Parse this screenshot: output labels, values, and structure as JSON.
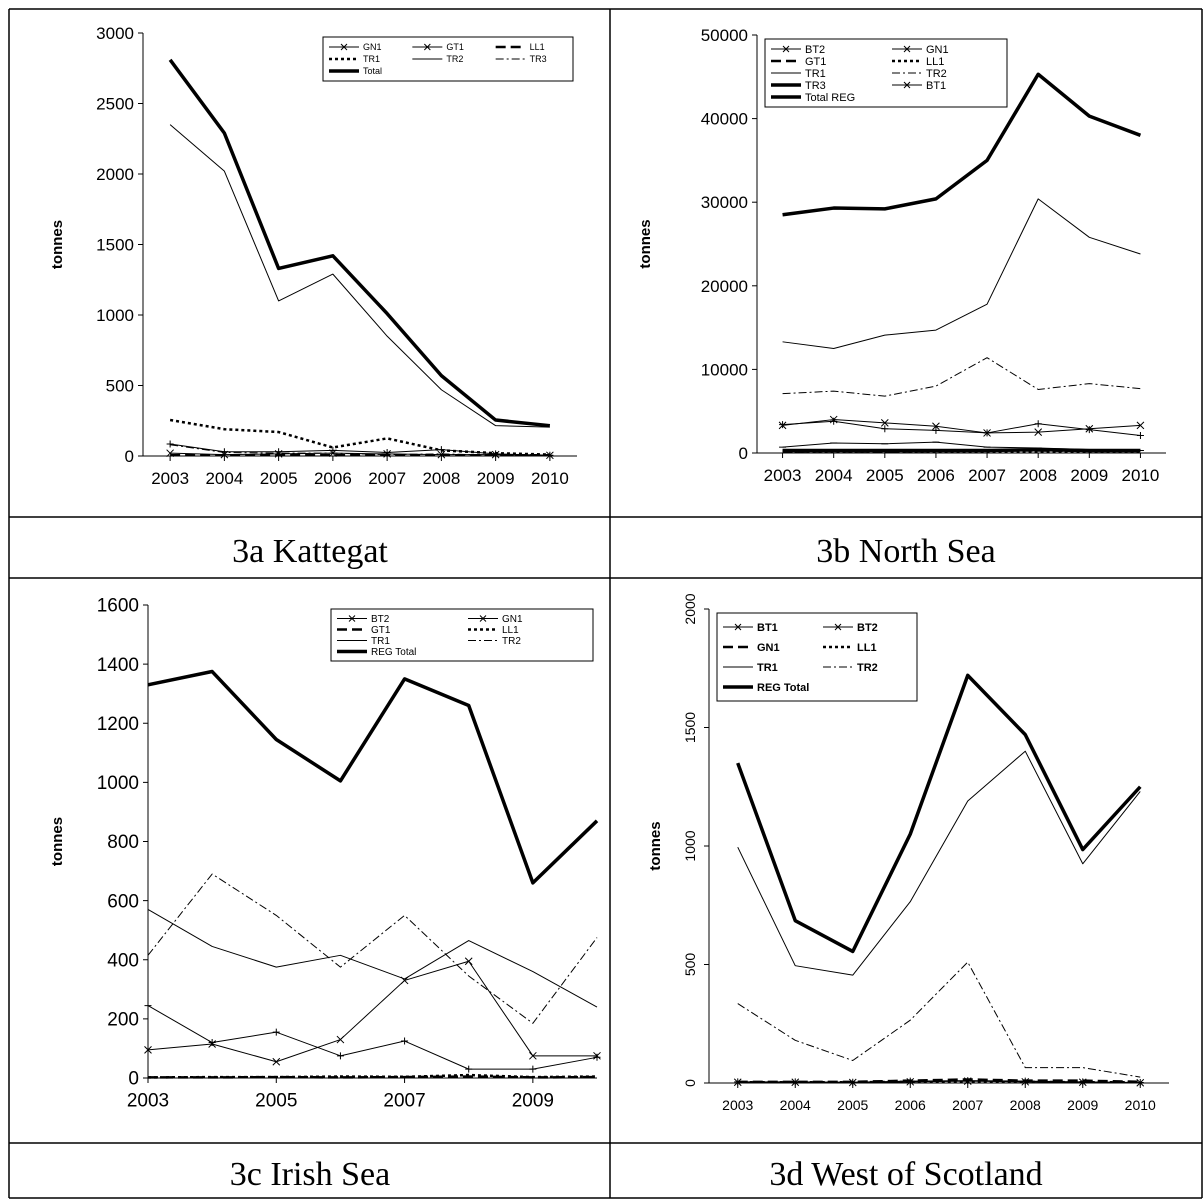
{
  "chart_data": [
    {
      "type": "line",
      "title": "3a Kattegat",
      "y_label": "tonnes",
      "x": [
        2003,
        2004,
        2005,
        2006,
        2007,
        2008,
        2009,
        2010
      ],
      "xlim": [
        2002.5,
        2010.5
      ],
      "xticks": [
        2003,
        2004,
        2005,
        2006,
        2007,
        2008,
        2009,
        2010
      ],
      "ylim": [
        0,
        3000
      ],
      "yticks": [
        0,
        500,
        1000,
        1500,
        2000,
        2500,
        3000
      ],
      "legend": "upper right",
      "series": [
        {
          "name": "GN1",
          "color": "#000000",
          "style": "solid",
          "marker": "plus",
          "values": [
            85,
            30,
            30,
            40,
            25,
            45,
            15,
            5
          ]
        },
        {
          "name": "GT1",
          "color": "#000000",
          "style": "solid",
          "marker": "cross",
          "values": [
            20,
            10,
            15,
            20,
            15,
            10,
            10,
            5
          ]
        },
        {
          "name": "LL1",
          "color": "#000000",
          "style": "dashed",
          "values": [
            5,
            5,
            5,
            5,
            5,
            5,
            5,
            5
          ]
        },
        {
          "name": "TR1",
          "color": "#000000",
          "style": "dotted",
          "values": [
            255,
            190,
            170,
            60,
            125,
            40,
            20,
            10
          ]
        },
        {
          "name": "TR2",
          "color": "#000000",
          "style": "solid",
          "values": [
            2350,
            2020,
            1100,
            1290,
            850,
            470,
            215,
            205
          ]
        },
        {
          "name": "TR3",
          "color": "#000000",
          "style": "dashdot",
          "values": [
            80,
            25,
            20,
            20,
            10,
            15,
            5,
            5
          ]
        },
        {
          "name": "Total",
          "color": "#000000",
          "style": "thick",
          "values": [
            2810,
            2290,
            1330,
            1420,
            1010,
            570,
            255,
            215
          ]
        }
      ]
    },
    {
      "type": "line",
      "title": "3b North Sea",
      "y_label": "tonnes",
      "x": [
        2003,
        2004,
        2005,
        2006,
        2007,
        2008,
        2009,
        2010
      ],
      "xlim": [
        2002.5,
        2010.5
      ],
      "xticks": [
        2003,
        2004,
        2005,
        2006,
        2007,
        2008,
        2009,
        2010
      ],
      "ylim": [
        0,
        50000
      ],
      "yticks": [
        0,
        10000,
        20000,
        30000,
        40000,
        50000
      ],
      "legend": "upper left",
      "series": [
        {
          "name": "BT2",
          "color": "#000000",
          "style": "solid",
          "marker": "plus",
          "values": [
            3400,
            3800,
            2900,
            2700,
            2400,
            3500,
            2800,
            2100
          ]
        },
        {
          "name": "GN1",
          "color": "#000000",
          "style": "solid",
          "marker": "cross",
          "values": [
            3300,
            4000,
            3600,
            3200,
            2400,
            2500,
            2900,
            3300
          ]
        },
        {
          "name": "GT1",
          "color": "#000000",
          "style": "dashed",
          "values": [
            200,
            250,
            200,
            250,
            300,
            300,
            250,
            250
          ]
        },
        {
          "name": "LL1",
          "color": "#000000",
          "style": "dotted",
          "values": [
            100,
            100,
            100,
            100,
            100,
            100,
            100,
            100
          ]
        },
        {
          "name": "TR1",
          "color": "#000000",
          "style": "solid",
          "values": [
            13300,
            12500,
            14100,
            14700,
            17800,
            30400,
            25800,
            23800
          ]
        },
        {
          "name": "TR2",
          "color": "#000000",
          "style": "dashdot",
          "values": [
            7100,
            7400,
            6800,
            8000,
            11400,
            7600,
            8300,
            7700
          ]
        },
        {
          "name": "TR3",
          "color": "#000000",
          "style": "thick",
          "values": [
            300,
            300,
            300,
            300,
            300,
            400,
            300,
            300
          ]
        },
        {
          "name": "BT1",
          "color": "#000000",
          "style": "solid",
          "marker": "dash",
          "values": [
            700,
            1200,
            1100,
            1300,
            700,
            600,
            400,
            300
          ]
        },
        {
          "name": "Total REG",
          "color": "#000000",
          "style": "thick",
          "values": [
            28500,
            29300,
            29200,
            30400,
            35000,
            45300,
            40300,
            38000
          ]
        }
      ]
    },
    {
      "type": "line",
      "title": "3c Irish Sea",
      "y_label": "tonnes",
      "x": [
        2003,
        2004,
        2005,
        2006,
        2007,
        2008,
        2009,
        2010
      ],
      "xlim": [
        2003,
        2010
      ],
      "xticks": [
        2003,
        2005,
        2007,
        2009
      ],
      "ylim": [
        0,
        1600
      ],
      "yticks": [
        0,
        200,
        400,
        600,
        800,
        1000,
        1200,
        1400,
        1600
      ],
      "legend": "upper right",
      "series": [
        {
          "name": "BT2",
          "color": "#000000",
          "style": "solid",
          "marker": "plus",
          "values": [
            245,
            120,
            155,
            75,
            125,
            30,
            30,
            70
          ]
        },
        {
          "name": "GN1",
          "color": "#000000",
          "style": "solid",
          "marker": "cross",
          "values": [
            95,
            115,
            55,
            130,
            330,
            395,
            75,
            75
          ]
        },
        {
          "name": "GT1",
          "color": "#000000",
          "style": "dashed",
          "values": [
            2,
            2,
            3,
            2,
            3,
            5,
            2,
            3
          ]
        },
        {
          "name": "LL1",
          "color": "#000000",
          "style": "dotted",
          "values": [
            2,
            3,
            3,
            5,
            4,
            10,
            3,
            5
          ]
        },
        {
          "name": "TR1",
          "color": "#000000",
          "style": "solid",
          "values": [
            570,
            445,
            375,
            415,
            335,
            465,
            360,
            240
          ]
        },
        {
          "name": "TR2",
          "color": "#000000",
          "style": "dashdot",
          "values": [
            415,
            690,
            550,
            375,
            550,
            345,
            185,
            475
          ]
        },
        {
          "name": "REG Total",
          "color": "#000000",
          "style": "thick",
          "values": [
            1330,
            1375,
            1145,
            1005,
            1350,
            1260,
            660,
            870
          ]
        }
      ]
    },
    {
      "type": "line",
      "title": "3d West of Scotland",
      "y_label": "tonnes",
      "x": [
        2003,
        2004,
        2005,
        2006,
        2007,
        2008,
        2009,
        2010
      ],
      "xlim": [
        2002.5,
        2010.5
      ],
      "xticks": [
        2003,
        2004,
        2005,
        2006,
        2007,
        2008,
        2009,
        2010
      ],
      "ylim": [
        0,
        2000
      ],
      "yticks": [
        0,
        500,
        1000,
        1500,
        2000
      ],
      "legend": "upper left",
      "series": [
        {
          "name": "BT1",
          "color": "#000000",
          "style": "solid",
          "marker": "plus",
          "values": [
            5,
            5,
            3,
            8,
            10,
            8,
            5,
            2
          ]
        },
        {
          "name": "BT2",
          "color": "#000000",
          "style": "solid",
          "marker": "cross",
          "values": [
            3,
            3,
            2,
            5,
            8,
            5,
            3,
            1
          ]
        },
        {
          "name": "GN1",
          "color": "#000000",
          "style": "dashed",
          "values": [
            5,
            5,
            5,
            10,
            15,
            10,
            10,
            5
          ]
        },
        {
          "name": "LL1",
          "color": "#000000",
          "style": "dotted",
          "values": [
            3,
            3,
            3,
            5,
            5,
            5,
            3,
            3
          ]
        },
        {
          "name": "TR1",
          "color": "#000000",
          "style": "solid",
          "values": [
            995,
            495,
            455,
            765,
            1190,
            1400,
            925,
            1230
          ]
        },
        {
          "name": "TR2",
          "color": "#000000",
          "style": "dashdot",
          "values": [
            335,
            180,
            95,
            265,
            510,
            65,
            65,
            25
          ]
        },
        {
          "name": "REG Total",
          "color": "#000000",
          "style": "thick",
          "values": [
            1350,
            685,
            555,
            1050,
            1720,
            1470,
            985,
            1250
          ]
        }
      ]
    }
  ]
}
